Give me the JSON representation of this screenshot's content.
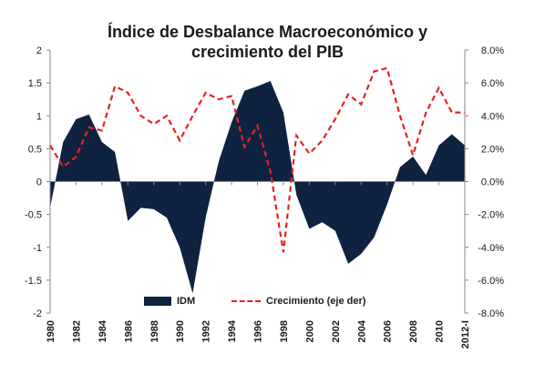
{
  "colors": {
    "idm_fill": "#0f2341",
    "growth_line": "#e8211d",
    "axis": "#888888",
    "text": "#1a1a1a"
  },
  "chart_data": {
    "type": "area",
    "title": "Índice de Desbalance Macroeconómico y",
    "subtitle": "crecimiento del PIB",
    "x": [
      1980,
      1981,
      1982,
      1983,
      1984,
      1985,
      1986,
      1987,
      1988,
      1989,
      1990,
      1991,
      1992,
      1993,
      1994,
      1995,
      1996,
      1997,
      1998,
      1999,
      2000,
      2001,
      2002,
      2003,
      2004,
      2005,
      2006,
      2007,
      2008,
      2009,
      2010,
      2011,
      2012
    ],
    "x_tick_labels": [
      "1980",
      "1982",
      "1984",
      "1986",
      "1988",
      "1990",
      "1992",
      "1994",
      "1996",
      "1998",
      "2000",
      "2002",
      "2004",
      "2006",
      "2008",
      "2010",
      "2012-I"
    ],
    "y_left": {
      "ylim": [
        -2,
        2
      ],
      "tick_labels": [
        "2",
        "1.5",
        "1",
        "0.5",
        "0",
        "-0.5",
        "-1",
        "-1.5",
        "-2"
      ]
    },
    "y_right": {
      "ylim": [
        -8,
        8
      ],
      "tick_labels": [
        "8.0%",
        "6.0%",
        "4.0%",
        "2.0%",
        "0.0%",
        "-2.0%",
        "-4.0%",
        "-6.0%",
        "-8.0%"
      ]
    },
    "series": [
      {
        "name": "IDM",
        "axis": "left",
        "style": "area",
        "values": [
          -0.4,
          0.6,
          0.95,
          1.02,
          0.6,
          0.45,
          -0.6,
          -0.4,
          -0.42,
          -0.55,
          -1.0,
          -1.7,
          -0.55,
          0.3,
          0.9,
          1.38,
          1.45,
          1.53,
          1.05,
          -0.2,
          -0.72,
          -0.62,
          -0.75,
          -1.25,
          -1.1,
          -0.85,
          -0.35,
          0.22,
          0.38,
          0.1,
          0.55,
          0.72,
          0.55
        ]
      },
      {
        "name": "Crecimiento (eje der)",
        "axis": "right",
        "style": "dashed-line",
        "values": [
          2.2,
          0.9,
          1.5,
          3.3,
          3.1,
          5.8,
          5.4,
          4.0,
          3.5,
          4.0,
          2.5,
          4.0,
          5.4,
          5.0,
          5.2,
          2.1,
          3.4,
          0.6,
          -4.3,
          2.8,
          1.7,
          2.5,
          3.8,
          5.3,
          4.7,
          6.7,
          6.9,
          4.0,
          1.6,
          4.2,
          5.7,
          4.2,
          4.2
        ]
      }
    ],
    "legend": {
      "placement": "bottom",
      "entries": [
        "IDM",
        "Crecimiento (eje der)"
      ]
    },
    "grid": false
  }
}
